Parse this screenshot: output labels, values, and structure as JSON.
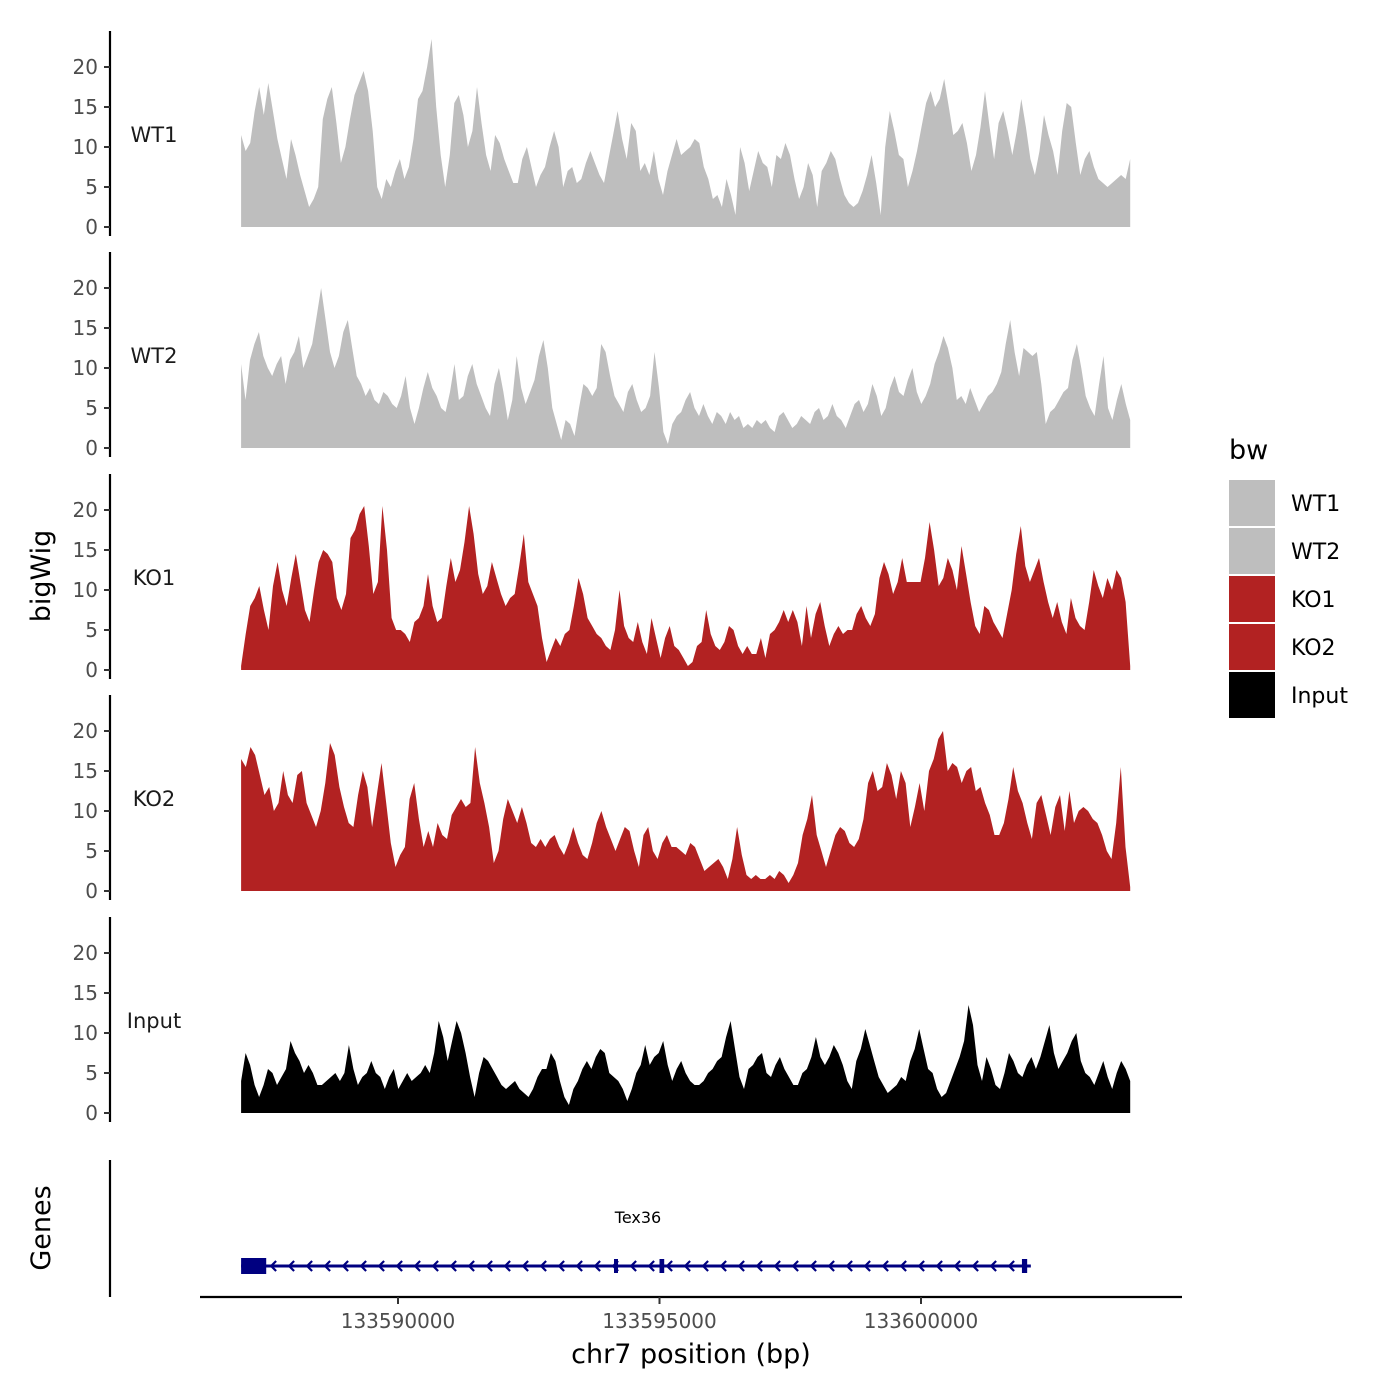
{
  "chart_data": {
    "type": "area",
    "xlabel": "chr7 position (bp)",
    "ylabel": "bigWig",
    "genes_label": "Genes",
    "xlim": [
      133584300,
      133604500
    ],
    "data_xrange": [
      133587000,
      133604000
    ],
    "ylim": [
      0,
      24
    ],
    "yticks": [
      0,
      5,
      10,
      15,
      20
    ],
    "xticks": [
      {
        "value": 133590000,
        "label": "133590000"
      },
      {
        "value": 133595000,
        "label": "133595000"
      },
      {
        "value": 133600000,
        "label": "133600000"
      }
    ],
    "legend": {
      "title": "bw",
      "entries": [
        "WT1",
        "WT2",
        "KO1",
        "KO2",
        "Input"
      ]
    },
    "colors": {
      "WT1": "#BEBEBE",
      "WT2": "#BEBEBE",
      "KO1": "#B22222",
      "KO2": "#B22222",
      "Input": "#000000",
      "gene": "#000080"
    },
    "series": [
      {
        "name": "WT1",
        "values": [
          11.5,
          9.5,
          10.5,
          14.5,
          17.5,
          14.0,
          18.0,
          14.5,
          11.0,
          8.5,
          6.0,
          11.0,
          9.0,
          6.5,
          4.5,
          2.5,
          3.5,
          5.0,
          13.5,
          16.0,
          17.5,
          13.0,
          8.0,
          10.0,
          13.5,
          16.5,
          18.0,
          19.5,
          17.0,
          12.0,
          5.0,
          3.5,
          6.0,
          5.0,
          7.0,
          8.5,
          6.0,
          7.5,
          11.0,
          16.0,
          17.0,
          20.0,
          23.5,
          15.0,
          9.0,
          5.0,
          9.0,
          15.5,
          16.5,
          14.0,
          10.0,
          12.0,
          17.5,
          13.0,
          9.0,
          7.0,
          11.5,
          10.5,
          8.5,
          7.0,
          5.5,
          5.5,
          8.5,
          10.0,
          7.5,
          5.0,
          6.5,
          7.5,
          10.0,
          12.0,
          10.0,
          5.0,
          7.0,
          7.5,
          5.5,
          6.0,
          8.0,
          9.5,
          8.0,
          6.5,
          5.5,
          8.5,
          11.5,
          14.5,
          11.0,
          8.5,
          13.0,
          12.0,
          7.0,
          8.0,
          6.5,
          9.5,
          6.0,
          4.0,
          7.0,
          9.0,
          11.0,
          9.0,
          9.5,
          10.0,
          11.0,
          10.5,
          7.5,
          6.0,
          3.5,
          4.0,
          2.5,
          6.0,
          4.0,
          1.5,
          10.0,
          8.0,
          4.5,
          7.0,
          9.5,
          8.0,
          7.5,
          5.0,
          9.0,
          8.5,
          10.5,
          9.0,
          6.0,
          3.5,
          5.0,
          8.0,
          6.5,
          2.5,
          7.0,
          8.0,
          9.5,
          8.5,
          6.0,
          4.0,
          3.0,
          2.5,
          3.0,
          4.5,
          6.5,
          9.0,
          5.5,
          1.5,
          10.0,
          14.5,
          12.0,
          9.0,
          8.5,
          5.0,
          7.0,
          9.5,
          12.5,
          15.5,
          17.0,
          15.0,
          16.0,
          18.5,
          15.0,
          11.5,
          12.0,
          13.0,
          10.5,
          7.0,
          9.0,
          12.5,
          17.0,
          12.5,
          8.5,
          13.0,
          14.5,
          12.0,
          9.0,
          12.0,
          16.0,
          12.5,
          8.5,
          6.5,
          9.5,
          14.0,
          11.5,
          9.5,
          6.5,
          12.0,
          15.5,
          15.0,
          10.5,
          6.5,
          8.5,
          9.5,
          7.5,
          6.0,
          5.5,
          5.0,
          5.5,
          6.0,
          6.5,
          6.0,
          8.5
        ]
      },
      {
        "name": "WT2",
        "values": [
          10.5,
          6.0,
          11.0,
          13.0,
          14.5,
          11.5,
          10.0,
          9.0,
          10.5,
          11.5,
          8.0,
          11.0,
          12.0,
          14.0,
          10.0,
          11.5,
          13.0,
          16.5,
          20.0,
          16.0,
          12.0,
          10.0,
          11.5,
          14.5,
          16.0,
          12.5,
          9.0,
          8.0,
          6.5,
          7.5,
          6.0,
          5.5,
          7.0,
          6.5,
          5.5,
          5.0,
          6.5,
          9.0,
          5.0,
          3.0,
          5.0,
          7.5,
          9.5,
          7.5,
          6.5,
          5.0,
          4.5,
          7.0,
          10.5,
          6.0,
          6.5,
          9.0,
          10.5,
          8.0,
          6.5,
          5.0,
          4.0,
          8.0,
          10.0,
          7.0,
          3.5,
          6.0,
          11.5,
          7.5,
          5.5,
          7.0,
          8.5,
          11.5,
          13.5,
          10.0,
          5.0,
          3.0,
          1.0,
          3.5,
          3.0,
          1.5,
          5.0,
          8.0,
          7.5,
          6.5,
          7.5,
          13.0,
          12.0,
          9.0,
          6.5,
          5.5,
          4.5,
          7.0,
          8.0,
          6.0,
          4.5,
          5.0,
          6.5,
          12.0,
          7.5,
          2.0,
          0.5,
          3.0,
          4.0,
          4.5,
          6.0,
          7.0,
          5.0,
          4.0,
          5.5,
          4.0,
          3.0,
          4.5,
          4.0,
          3.0,
          4.5,
          3.5,
          4.0,
          2.5,
          3.0,
          2.5,
          3.5,
          3.0,
          3.5,
          2.5,
          2.0,
          4.0,
          4.5,
          3.5,
          2.5,
          3.0,
          4.0,
          3.5,
          3.0,
          4.5,
          5.0,
          3.5,
          4.0,
          5.5,
          4.0,
          3.5,
          2.5,
          4.0,
          5.5,
          6.0,
          4.5,
          5.5,
          8.0,
          6.5,
          4.0,
          5.0,
          7.5,
          9.0,
          7.0,
          6.5,
          8.5,
          10.0,
          7.0,
          5.5,
          6.5,
          8.0,
          10.5,
          12.0,
          14.0,
          12.5,
          10.0,
          6.0,
          6.5,
          5.5,
          7.5,
          6.0,
          4.5,
          5.5,
          6.5,
          7.0,
          8.0,
          9.5,
          13.0,
          16.0,
          12.0,
          9.0,
          12.5,
          12.0,
          11.5,
          12.0,
          8.0,
          3.0,
          4.5,
          5.0,
          6.0,
          7.0,
          7.5,
          11.0,
          13.0,
          10.0,
          6.5,
          5.0,
          4.0,
          8.0,
          11.5,
          5.0,
          3.5,
          6.0,
          8.0,
          5.5,
          3.5
        ]
      },
      {
        "name": "KO1",
        "values": [
          0.5,
          4.5,
          8.0,
          9.0,
          10.5,
          7.5,
          5.0,
          10.5,
          13.5,
          10.0,
          8.0,
          11.5,
          14.5,
          11.0,
          7.5,
          6.0,
          10.0,
          13.5,
          15.0,
          14.5,
          13.5,
          9.0,
          7.5,
          9.5,
          16.5,
          17.5,
          19.5,
          20.5,
          15.5,
          9.5,
          11.0,
          20.5,
          15.0,
          6.5,
          5.0,
          5.0,
          4.5,
          3.5,
          6.0,
          6.5,
          8.0,
          12.0,
          8.0,
          6.0,
          6.5,
          10.5,
          14.0,
          11.0,
          12.5,
          16.0,
          20.5,
          17.0,
          12.0,
          9.5,
          10.5,
          13.5,
          11.5,
          9.5,
          8.0,
          9.0,
          9.5,
          13.0,
          17.0,
          11.0,
          9.5,
          8.0,
          4.0,
          1.0,
          2.5,
          4.0,
          3.0,
          4.5,
          5.0,
          8.0,
          11.5,
          9.5,
          6.5,
          5.5,
          4.5,
          4.0,
          3.0,
          2.5,
          5.0,
          10.0,
          5.5,
          4.0,
          3.5,
          6.0,
          3.5,
          2.0,
          6.5,
          4.0,
          1.5,
          4.0,
          5.5,
          3.0,
          2.5,
          1.5,
          0.5,
          1.0,
          3.0,
          3.5,
          7.5,
          4.5,
          3.0,
          2.5,
          3.5,
          5.5,
          5.0,
          3.0,
          2.0,
          3.0,
          2.0,
          2.0,
          4.0,
          1.5,
          4.5,
          5.0,
          6.0,
          7.5,
          6.0,
          7.5,
          6.0,
          3.0,
          8.0,
          4.0,
          7.0,
          8.5,
          5.5,
          3.0,
          4.5,
          5.5,
          4.5,
          5.0,
          5.0,
          7.0,
          8.0,
          6.5,
          5.5,
          7.0,
          11.5,
          13.5,
          12.0,
          9.5,
          11.0,
          14.0,
          11.0,
          11.0,
          11.0,
          11.0,
          14.0,
          18.5,
          15.0,
          10.5,
          11.5,
          14.0,
          12.5,
          10.0,
          15.5,
          12.0,
          8.5,
          5.5,
          4.5,
          8.0,
          7.5,
          6.0,
          5.0,
          4.0,
          7.0,
          10.0,
          14.5,
          18.0,
          13.0,
          11.0,
          12.5,
          14.0,
          11.0,
          8.5,
          6.5,
          8.5,
          6.0,
          4.5,
          9.0,
          6.5,
          5.5,
          5.0,
          8.5,
          12.5,
          10.5,
          9.0,
          11.5,
          10.0,
          12.5,
          11.5,
          8.5,
          0.5
        ]
      },
      {
        "name": "KO2",
        "values": [
          16.5,
          15.5,
          18.0,
          17.0,
          14.5,
          12.0,
          13.0,
          10.0,
          11.0,
          15.0,
          12.0,
          11.0,
          14.5,
          15.0,
          11.0,
          9.5,
          8.0,
          10.0,
          13.5,
          18.5,
          17.0,
          13.0,
          10.5,
          8.5,
          8.0,
          12.0,
          15.0,
          13.0,
          8.0,
          12.0,
          16.0,
          11.0,
          6.0,
          3.0,
          4.5,
          5.5,
          11.5,
          13.5,
          9.0,
          5.5,
          7.5,
          5.5,
          8.5,
          7.0,
          6.5,
          9.5,
          10.5,
          11.5,
          10.5,
          11.0,
          18.0,
          13.5,
          11.0,
          8.0,
          3.5,
          5.0,
          9.0,
          11.5,
          10.0,
          8.5,
          10.5,
          8.5,
          6.0,
          5.5,
          6.5,
          5.5,
          6.5,
          7.0,
          5.5,
          4.5,
          6.0,
          8.0,
          6.0,
          4.5,
          4.0,
          6.0,
          8.5,
          10.0,
          8.0,
          6.5,
          5.0,
          6.5,
          8.0,
          7.5,
          5.0,
          3.0,
          7.0,
          8.0,
          5.0,
          4.0,
          6.0,
          7.0,
          5.5,
          5.5,
          5.0,
          4.5,
          6.0,
          5.5,
          4.0,
          2.5,
          3.0,
          3.5,
          4.0,
          3.0,
          1.5,
          4.0,
          8.0,
          4.5,
          2.0,
          1.5,
          2.0,
          1.5,
          1.5,
          2.0,
          1.5,
          2.5,
          2.0,
          1.0,
          2.0,
          3.5,
          7.0,
          9.0,
          12.0,
          7.0,
          5.0,
          3.0,
          5.0,
          7.0,
          8.0,
          7.5,
          6.0,
          5.5,
          6.5,
          9.0,
          13.5,
          15.0,
          12.5,
          13.0,
          16.0,
          14.5,
          11.5,
          15.0,
          13.5,
          8.0,
          10.5,
          13.5,
          10.0,
          15.0,
          16.5,
          19.0,
          20.0,
          15.0,
          16.0,
          15.5,
          13.5,
          15.0,
          15.5,
          12.5,
          13.0,
          11.0,
          9.5,
          7.0,
          7.0,
          8.5,
          11.5,
          15.5,
          12.5,
          11.0,
          8.5,
          6.5,
          11.0,
          12.0,
          9.5,
          7.0,
          10.5,
          12.0,
          7.5,
          12.5,
          8.5,
          10.0,
          10.5,
          10.0,
          9.0,
          8.5,
          7.0,
          5.0,
          4.0,
          8.5,
          15.5,
          5.5,
          0.5
        ]
      },
      {
        "name": "Input",
        "values": [
          4.0,
          7.5,
          6.0,
          3.5,
          2.0,
          3.5,
          5.5,
          5.0,
          3.5,
          4.5,
          5.5,
          9.0,
          7.5,
          6.5,
          5.0,
          6.0,
          5.0,
          3.5,
          3.5,
          4.0,
          4.5,
          5.0,
          4.0,
          5.0,
          8.5,
          5.5,
          3.5,
          4.5,
          5.0,
          6.5,
          5.0,
          4.5,
          3.0,
          4.5,
          5.5,
          3.0,
          4.0,
          5.0,
          4.0,
          4.5,
          5.0,
          6.0,
          5.0,
          7.5,
          11.5,
          9.5,
          6.5,
          9.0,
          11.5,
          10.0,
          7.5,
          4.5,
          2.0,
          5.0,
          7.0,
          6.5,
          5.5,
          4.5,
          3.5,
          3.0,
          3.5,
          4.0,
          3.0,
          2.5,
          2.0,
          3.0,
          4.5,
          5.5,
          5.5,
          7.5,
          6.5,
          4.0,
          2.0,
          1.0,
          3.0,
          4.0,
          5.5,
          6.5,
          5.5,
          7.0,
          8.0,
          7.5,
          5.0,
          4.5,
          4.0,
          3.0,
          1.5,
          3.0,
          5.0,
          6.0,
          8.5,
          6.0,
          7.0,
          7.5,
          9.0,
          6.0,
          4.0,
          5.5,
          6.5,
          5.0,
          4.0,
          3.5,
          3.5,
          4.0,
          5.0,
          5.5,
          6.5,
          7.0,
          9.5,
          11.5,
          8.0,
          4.5,
          3.0,
          5.5,
          6.0,
          7.0,
          7.5,
          5.0,
          4.5,
          6.0,
          7.0,
          5.5,
          4.5,
          3.5,
          3.5,
          5.0,
          5.5,
          7.0,
          9.5,
          7.0,
          6.0,
          7.0,
          8.5,
          7.5,
          6.0,
          4.0,
          3.0,
          6.5,
          8.0,
          10.5,
          8.5,
          6.5,
          4.5,
          3.5,
          2.5,
          3.0,
          3.5,
          4.5,
          4.0,
          6.5,
          8.0,
          10.5,
          8.0,
          5.5,
          5.0,
          3.0,
          2.0,
          2.5,
          4.0,
          5.5,
          7.0,
          9.0,
          13.5,
          11.0,
          6.0,
          4.0,
          7.0,
          5.5,
          3.5,
          3.0,
          5.0,
          7.5,
          6.5,
          5.0,
          4.5,
          6.0,
          7.0,
          5.5,
          7.0,
          9.0,
          11.0,
          7.5,
          5.5,
          6.5,
          7.5,
          9.0,
          10.0,
          6.5,
          5.0,
          4.5,
          3.5,
          5.0,
          6.5,
          4.5,
          3.0,
          5.0,
          6.5,
          5.5,
          4.0
        ]
      }
    ],
    "gene": {
      "name": "Tex36",
      "start": 133587000,
      "end": 133602100,
      "strand": "-",
      "exons": [
        [
          133587000,
          133587480
        ],
        [
          133594130,
          133594180
        ],
        [
          133595000,
          133595090
        ],
        [
          133601930,
          133602030
        ]
      ]
    }
  }
}
